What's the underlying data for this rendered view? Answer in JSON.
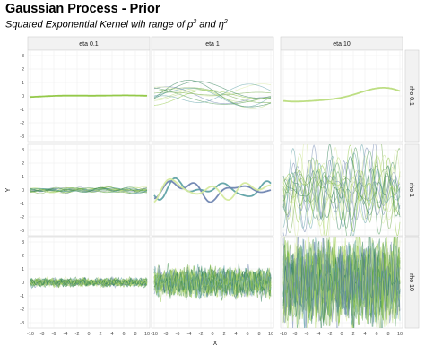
{
  "title": "Gaussian Process - Prior",
  "subtitle": {
    "prefix": "Squared Exponential Kernel wih range of ",
    "rho": "ρ",
    "rho_exp": "2",
    "and": " and ",
    "eta": "η",
    "eta_exp": "2"
  },
  "chart_data": {
    "type": "line",
    "facet_columns": [
      "eta 0.1",
      "eta 1",
      "eta 10"
    ],
    "facet_rows": [
      "rho 0.1",
      "rho 1",
      "rho 10"
    ],
    "xlabel": "X",
    "ylabel": "Y",
    "xlim": [
      -10,
      10
    ],
    "ylim": [
      -3,
      3
    ],
    "x_ticks": [
      -10,
      -8,
      -6,
      -4,
      -2,
      0,
      2,
      4,
      6,
      8,
      10
    ],
    "y_ticks": [
      3,
      2,
      1,
      0,
      -1,
      -2,
      -3
    ],
    "grid": true,
    "series_colors": [
      "#8ec63f",
      "#6fa948",
      "#b9dc7c",
      "#2f7f55",
      "#5fa2a7",
      "#6f85b1",
      "#d5ea9f",
      "#4f9a5a"
    ],
    "panels": [
      {
        "row": "rho 0.1",
        "col": "eta 0.1",
        "n_samples": 1,
        "length_scale": 3.0,
        "amplitude": 0.12
      },
      {
        "row": "rho 0.1",
        "col": "eta 1",
        "n_samples": 12,
        "length_scale": 3.0,
        "amplitude": 1.0
      },
      {
        "row": "rho 0.1",
        "col": "eta 10",
        "n_samples": 1,
        "length_scale": 3.0,
        "amplitude": 0.8
      },
      {
        "row": "rho 1",
        "col": "eta 0.1",
        "n_samples": 18,
        "length_scale": 0.9,
        "amplitude": 0.22
      },
      {
        "row": "rho 1",
        "col": "eta 1",
        "n_samples": 3,
        "length_scale": 0.9,
        "amplitude": 0.9
      },
      {
        "row": "rho 1",
        "col": "eta 10",
        "n_samples": 18,
        "length_scale": 0.5,
        "amplitude": 3.0
      },
      {
        "row": "rho 10",
        "col": "eta 0.1",
        "n_samples": 30,
        "length_scale": 0.12,
        "amplitude": 0.28
      },
      {
        "row": "rho 10",
        "col": "eta 1",
        "n_samples": 30,
        "length_scale": 0.12,
        "amplitude": 1.0
      },
      {
        "row": "rho 10",
        "col": "eta 10",
        "n_samples": 30,
        "length_scale": 0.12,
        "amplitude": 2.9
      }
    ]
  }
}
